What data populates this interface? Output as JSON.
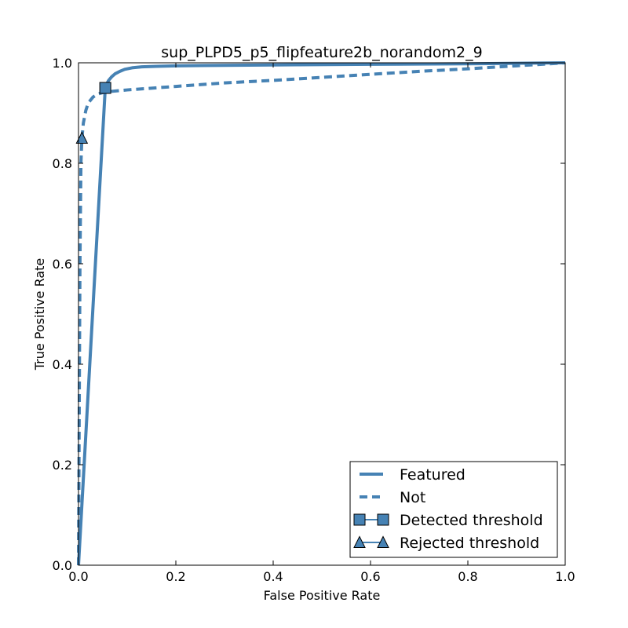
{
  "chart_data": {
    "type": "line",
    "title": "sup_PLPD5_p5_flipfeature2b_norandom2_9",
    "xlabel": "False Positive Rate",
    "ylabel": "True Positive Rate",
    "xlim": [
      0.0,
      1.0
    ],
    "ylim": [
      0.0,
      1.0
    ],
    "xticks": [
      "0.0",
      "0.2",
      "0.4",
      "0.6",
      "0.8",
      "1.0"
    ],
    "yticks": [
      "0.0",
      "0.2",
      "0.4",
      "0.6",
      "0.8",
      "1.0"
    ],
    "grid": false,
    "legend_position": "bottom-right",
    "line_color": "#4682b4",
    "series": [
      {
        "name": "Featured",
        "style": "solid",
        "x": [
          0.0,
          0.055,
          0.058,
          0.062,
          0.068,
          0.075,
          0.085,
          0.095,
          0.11,
          0.13,
          0.16,
          0.2,
          0.3,
          0.45,
          0.6,
          0.8,
          1.0
        ],
        "y": [
          0.0,
          0.95,
          0.958,
          0.965,
          0.972,
          0.978,
          0.983,
          0.987,
          0.99,
          0.992,
          0.993,
          0.994,
          0.995,
          0.996,
          0.997,
          0.998,
          1.0
        ]
      },
      {
        "name": "Not",
        "style": "dashed",
        "x": [
          0.0,
          0.001,
          0.002,
          0.003,
          0.004,
          0.005,
          0.007,
          0.01,
          0.015,
          0.02,
          0.03,
          0.04,
          0.055,
          0.1,
          0.2,
          0.3,
          0.4,
          0.5,
          0.6,
          0.7,
          0.8,
          0.9,
          1.0
        ],
        "y": [
          0.0,
          0.2,
          0.4,
          0.6,
          0.7,
          0.8,
          0.85,
          0.88,
          0.905,
          0.92,
          0.932,
          0.938,
          0.942,
          0.946,
          0.953,
          0.96,
          0.965,
          0.971,
          0.977,
          0.983,
          0.988,
          0.994,
          1.0
        ]
      }
    ],
    "markers": [
      {
        "name": "Detected threshold",
        "shape": "square",
        "x": 0.055,
        "y": 0.95
      },
      {
        "name": "Rejected threshold",
        "shape": "triangle",
        "x": 0.007,
        "y": 0.85
      }
    ]
  }
}
